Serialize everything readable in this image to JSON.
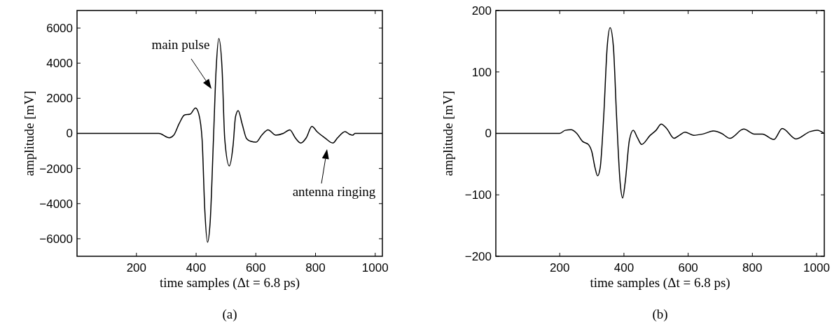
{
  "chart_data": [
    {
      "type": "line",
      "xlabel": "time samples (Δt = 6.8 ps)",
      "ylabel": "amplitude [mV]",
      "xlim": [
        1,
        1024
      ],
      "ylim": [
        -7000,
        7000
      ],
      "xticks": [
        200,
        400,
        600,
        800,
        1000
      ],
      "yticks": [
        -6000,
        -4000,
        -2000,
        0,
        2000,
        4000,
        6000
      ],
      "color": "#000000",
      "x": [
        1,
        275,
        310,
        325,
        343,
        361,
        380,
        398,
        409,
        420,
        429,
        438,
        447,
        458,
        467,
        476,
        487,
        496,
        511,
        524,
        532,
        541,
        554,
        569,
        583,
        601,
        620,
        641,
        667,
        692,
        714,
        732,
        751,
        769,
        788,
        805,
        831,
        858,
        874,
        899,
        914,
        925,
        932,
        1024
      ],
      "values": [
        0,
        0,
        -250,
        -100,
        550,
        1050,
        1100,
        1450,
        1100,
        -350,
        -4350,
        -6200,
        -5050,
        -350,
        3650,
        5400,
        3650,
        -350,
        -1850,
        -650,
        950,
        1300,
        550,
        -300,
        -450,
        -500,
        -100,
        200,
        -100,
        0,
        200,
        -250,
        -550,
        -250,
        400,
        100,
        -250,
        -550,
        -250,
        100,
        -50,
        -100,
        0,
        0
      ],
      "annotations": [
        "main pulse",
        "antenna ringing",
        "(a)"
      ]
    },
    {
      "type": "line",
      "xlabel": "time samples (Δt = 6.8 ps)",
      "ylabel": "amplitude [mV]",
      "xlim": [
        1,
        1024
      ],
      "ylim": [
        -200,
        200
      ],
      "xticks": [
        200,
        400,
        600,
        800,
        1000
      ],
      "yticks": [
        -200,
        -100,
        0,
        100,
        200
      ],
      "color": "#000000",
      "x": [
        1,
        200,
        217,
        235,
        253,
        271,
        289,
        300,
        310,
        318,
        326,
        337,
        348,
        357,
        367,
        377,
        388,
        396,
        404,
        417,
        429,
        442,
        455,
        482,
        500,
        516,
        533,
        556,
        573,
        590,
        617,
        646,
        679,
        704,
        730,
        773,
        806,
        831,
        867,
        893,
        936,
        980,
        1002,
        1023
      ],
      "values": [
        0,
        0,
        5,
        6,
        0,
        -13,
        -18,
        -30,
        -56,
        -69,
        -56,
        28,
        142,
        172,
        142,
        28,
        -79,
        -105,
        -79,
        -11,
        5,
        -7,
        -18,
        -3,
        5,
        15,
        8,
        -8,
        -3,
        2,
        -3,
        -1,
        4,
        0,
        -8,
        7,
        -1,
        -1,
        -10,
        8,
        -9,
        3,
        5,
        0
      ],
      "annotations": [
        "(b)"
      ]
    }
  ]
}
